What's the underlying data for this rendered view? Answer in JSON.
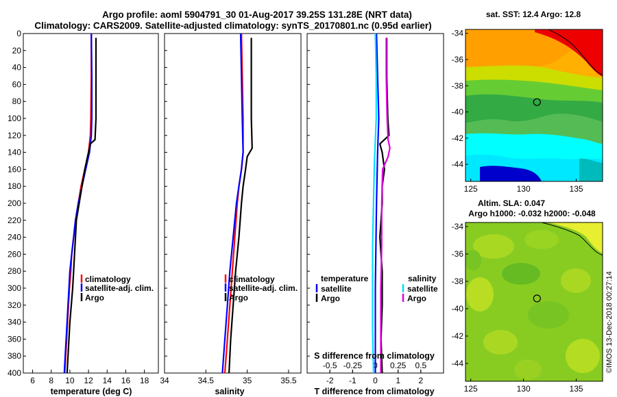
{
  "header": {
    "line1": "Argo profile: aoml 5904791_30 01-Aug-2017 39.25S 131.28E (NRT data)",
    "line2": "Climatology: CARS2009. Satellite-adjusted climatology: synTS_20170801.nc (0.95d earlier)"
  },
  "colors": {
    "climatology": "#ff0000",
    "satellite": "#0000ff",
    "argo": "#000000",
    "sal_satellite": "#00e0ff",
    "sal_argo": "#e000e0"
  },
  "chart_data": [
    {
      "type": "line",
      "panel": "temperature",
      "xlabel": "temperature (deg C)",
      "ylabel": "",
      "xlim": [
        5,
        19.5
      ],
      "ylim": [
        400,
        0
      ],
      "xticks": [
        6,
        8,
        10,
        12,
        14,
        16,
        18
      ],
      "yticks": [
        0,
        20,
        40,
        60,
        80,
        100,
        120,
        140,
        160,
        180,
        200,
        220,
        240,
        260,
        280,
        300,
        320,
        340,
        360,
        380,
        400
      ],
      "legend": [
        "climatology",
        "satellite-adj. clim.",
        "Argo"
      ],
      "series": [
        {
          "name": "climatology",
          "depth": [
            0,
            50,
            100,
            120,
            140,
            160,
            180,
            200,
            220,
            240,
            260,
            280,
            300,
            320,
            340,
            360,
            380,
            400
          ],
          "values": [
            12.3,
            12.3,
            12.25,
            12.2,
            12.0,
            11.6,
            11.2,
            10.9,
            10.6,
            10.4,
            10.2,
            10.1,
            9.95,
            9.85,
            9.75,
            9.65,
            9.55,
            9.45
          ]
        },
        {
          "name": "satellite-adj. clim.",
          "depth": [
            0,
            50,
            100,
            120,
            140,
            160,
            180,
            200,
            220,
            240,
            260,
            280,
            300,
            320,
            340,
            360,
            380,
            400
          ],
          "values": [
            12.3,
            12.35,
            12.35,
            12.3,
            12.1,
            11.7,
            11.3,
            10.9,
            10.6,
            10.4,
            10.2,
            10.0,
            9.9,
            9.8,
            9.7,
            9.6,
            9.5,
            9.4
          ]
        },
        {
          "name": "Argo",
          "depth": [
            5,
            50,
            100,
            125,
            130,
            140,
            160,
            180,
            200,
            220,
            240,
            260,
            280,
            300,
            320,
            340,
            360,
            380,
            400
          ],
          "values": [
            12.8,
            12.8,
            12.8,
            12.7,
            12.2,
            12.0,
            11.6,
            11.3,
            11.0,
            10.7,
            10.6,
            10.5,
            10.4,
            10.3,
            10.15,
            10.0,
            9.9,
            9.8,
            9.7
          ]
        }
      ]
    },
    {
      "type": "line",
      "panel": "salinity",
      "xlabel": "salinity",
      "ylabel": "",
      "xlim": [
        34,
        35.65
      ],
      "ylim": [
        400,
        0
      ],
      "xticks": [
        34,
        34.5,
        35,
        35.5
      ],
      "xtick_labels": [
        "34",
        "34.5",
        "35",
        "35.5"
      ],
      "legend": [
        "climatology",
        "satellite-adj. clim.",
        "Argo"
      ],
      "series": [
        {
          "name": "climatology",
          "depth": [
            0,
            50,
            100,
            140,
            160,
            180,
            200,
            240,
            280,
            320,
            360,
            400
          ],
          "values": [
            34.93,
            34.94,
            34.95,
            34.95,
            34.93,
            34.9,
            34.88,
            34.85,
            34.82,
            34.79,
            34.76,
            34.73
          ]
        },
        {
          "name": "satellite-adj. clim.",
          "depth": [
            0,
            50,
            100,
            140,
            160,
            180,
            200,
            240,
            280,
            320,
            360,
            400
          ],
          "values": [
            34.92,
            34.93,
            34.94,
            34.95,
            34.93,
            34.9,
            34.87,
            34.83,
            34.79,
            34.76,
            34.73,
            34.7
          ]
        },
        {
          "name": "Argo",
          "depth": [
            5,
            50,
            100,
            135,
            145,
            160,
            180,
            200,
            240,
            280,
            320,
            360,
            400
          ],
          "values": [
            35.05,
            35.05,
            35.05,
            35.06,
            35.0,
            34.98,
            34.95,
            34.93,
            34.9,
            34.86,
            34.83,
            34.8,
            34.78
          ]
        }
      ]
    },
    {
      "type": "line",
      "panel": "difference",
      "xlabel": "T difference from climatology",
      "xlabel_top": "S difference from climatology",
      "xlim": [
        -3,
        3
      ],
      "xlim_top": [
        -0.75,
        0.75
      ],
      "ylim": [
        400,
        0
      ],
      "xticks": [
        -2,
        -1,
        0,
        1,
        2
      ],
      "xticks_top": [
        -0.5,
        -0.25,
        0,
        0.25,
        0.5
      ],
      "xtick_labels_top": [
        "-0.5",
        "-0.25",
        "0",
        "0.25",
        "0.5"
      ],
      "legend_left_title": "temperature",
      "legend_right_title": "salinity",
      "legend": [
        "satellite",
        "Argo",
        "satellite",
        "Argo"
      ],
      "series": [
        {
          "name": "T satellite",
          "axis": "T",
          "depth": [
            0,
            50,
            100,
            140,
            200,
            300,
            400
          ],
          "values": [
            0.05,
            0.1,
            0.15,
            0.1,
            0.05,
            0.0,
            0.0
          ]
        },
        {
          "name": "T Argo",
          "axis": "T",
          "depth": [
            5,
            50,
            100,
            120,
            130,
            140,
            160,
            180,
            200,
            240,
            280,
            320,
            360,
            400
          ],
          "values": [
            0.5,
            0.5,
            0.55,
            0.6,
            0.2,
            0.3,
            0.4,
            0.3,
            0.3,
            0.2,
            0.3,
            0.3,
            0.25,
            0.3
          ]
        },
        {
          "name": "S satellite",
          "axis": "S",
          "depth": [
            0,
            50,
            100,
            150,
            200,
            250,
            300,
            350,
            400
          ],
          "values": [
            0.0,
            0.01,
            0.01,
            -0.01,
            -0.02,
            -0.03,
            -0.03,
            -0.03,
            -0.02
          ]
        },
        {
          "name": "S Argo",
          "axis": "S",
          "depth": [
            5,
            50,
            100,
            125,
            135,
            145,
            160,
            200,
            250,
            300,
            350,
            400
          ],
          "values": [
            0.12,
            0.12,
            0.13,
            0.14,
            0.16,
            0.14,
            0.08,
            0.07,
            0.07,
            0.06,
            0.06,
            0.06
          ]
        }
      ]
    },
    {
      "type": "heatmap",
      "panel": "sst_map",
      "title": "sat. SST: 12.4 Argo: 12.8",
      "xlim": [
        124.5,
        137.5
      ],
      "ylim": [
        -45.3,
        -33.7
      ],
      "xticks": [
        125,
        130,
        135
      ],
      "yticks": [
        -34,
        -36,
        -38,
        -40,
        -42,
        -44
      ],
      "marker": {
        "lon": 131.28,
        "lat": -39.25
      }
    },
    {
      "type": "heatmap",
      "panel": "sla_map",
      "title_line1": "Altim. SLA: 0.047",
      "title_line2": "Argo h1000: -0.032 h2000: -0.048",
      "xlim": [
        124.5,
        137.5
      ],
      "ylim": [
        -45.3,
        -33.7
      ],
      "xticks": [
        125,
        130,
        135
      ],
      "yticks": [
        -34,
        -36,
        -38,
        -40,
        -42,
        -44
      ],
      "marker": {
        "lon": 131.28,
        "lat": -39.25
      }
    }
  ],
  "credit": "©IMOS 13-Dec-2018 00:27:14"
}
